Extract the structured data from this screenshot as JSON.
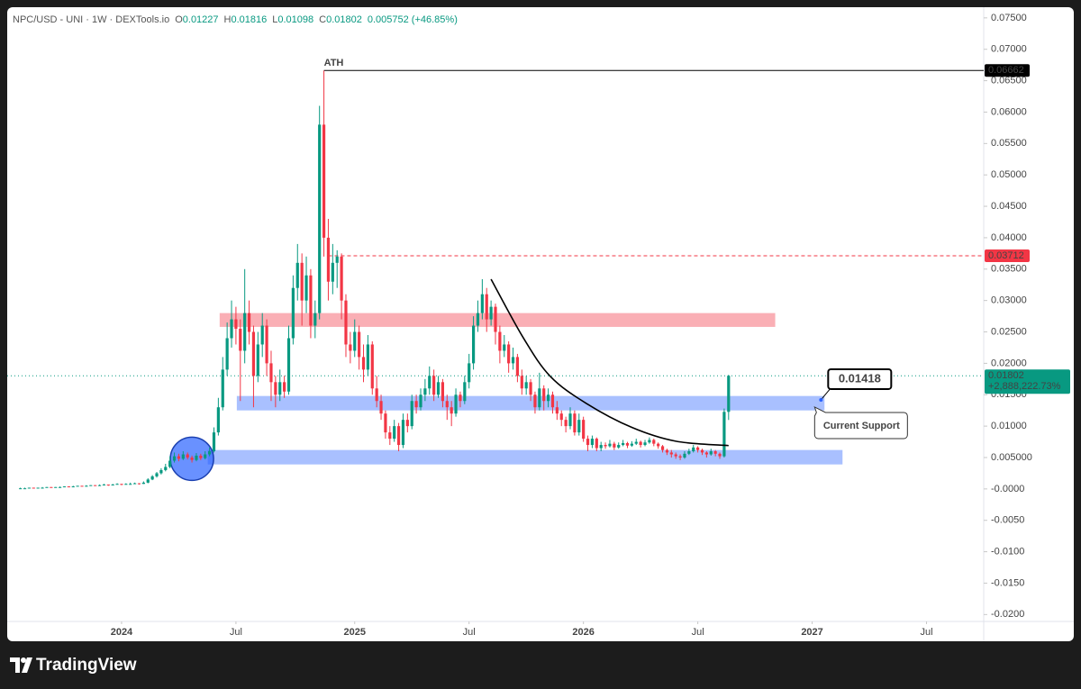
{
  "chart_data": {
    "type": "candlestick",
    "symbol": "NPC/USD - UNI · 1W · DEXTools.io",
    "ohlc_labels": [
      "O",
      "H",
      "L",
      "C"
    ],
    "change_label": "0.005752 (+46.85%)",
    "last_change_label": "+2,888,222.73%",
    "up_color": "#089981",
    "down_color": "#f23645",
    "grid": false,
    "xlim": [
      -3,
      219
    ],
    "ylim": [
      -0.0211,
      0.0767
    ],
    "xticks": [
      {
        "value": 23,
        "label": "2024"
      },
      {
        "value": 49,
        "label": "Jul"
      },
      {
        "value": 76,
        "label": "2025"
      },
      {
        "value": 102,
        "label": "Jul"
      },
      {
        "value": 128,
        "label": "2026"
      },
      {
        "value": 154,
        "label": "Jul"
      },
      {
        "value": 180,
        "label": "2027"
      },
      {
        "value": 206,
        "label": "Jul"
      }
    ],
    "yticks": [
      {
        "value": 0.075,
        "label": "0.07500"
      },
      {
        "value": 0.07,
        "label": "0.07000"
      },
      {
        "value": 0.065,
        "label": "0.06500"
      },
      {
        "value": 0.06,
        "label": "0.06000"
      },
      {
        "value": 0.055,
        "label": "0.05500"
      },
      {
        "value": 0.05,
        "label": "0.05000"
      },
      {
        "value": 0.045,
        "label": "0.04500"
      },
      {
        "value": 0.04,
        "label": "0.04000"
      },
      {
        "value": 0.035,
        "label": "0.03500"
      },
      {
        "value": 0.03,
        "label": "0.03000"
      },
      {
        "value": 0.025,
        "label": "0.02500"
      },
      {
        "value": 0.02,
        "label": "0.02000"
      },
      {
        "value": 0.015,
        "label": "0.01500"
      },
      {
        "value": 0.01,
        "label": "0.01000"
      },
      {
        "value": 0.005,
        "label": "0.005000"
      },
      {
        "value": 0,
        "label": "-0.0000"
      },
      {
        "value": -0.005,
        "label": "-0.0050"
      },
      {
        "value": -0.01,
        "label": "-0.0100"
      },
      {
        "value": -0.015,
        "label": "-0.0150"
      },
      {
        "value": -0.02,
        "label": "-0.0200"
      }
    ],
    "x": [
      0,
      1,
      2,
      3,
      4,
      5,
      6,
      7,
      8,
      9,
      10,
      11,
      12,
      13,
      14,
      15,
      16,
      17,
      18,
      19,
      20,
      21,
      22,
      23,
      24,
      25,
      26,
      27,
      28,
      29,
      30,
      31,
      32,
      33,
      34,
      35,
      36,
      37,
      38,
      39,
      40,
      41,
      42,
      43,
      44,
      45,
      46,
      47,
      48,
      49,
      50,
      51,
      52,
      53,
      54,
      55,
      56,
      57,
      58,
      59,
      60,
      61,
      62,
      63,
      64,
      65,
      66,
      67,
      68,
      69,
      70,
      71,
      72,
      73,
      74,
      75,
      76,
      77,
      78,
      79,
      80,
      81,
      82,
      83,
      84,
      85,
      86,
      87,
      88,
      89,
      90,
      91,
      92,
      93,
      94,
      95,
      96,
      97,
      98,
      99,
      100,
      101,
      102,
      103,
      104,
      105,
      106,
      107,
      108,
      109,
      110,
      111,
      112,
      113,
      114,
      115,
      116,
      117,
      118,
      119,
      120,
      121,
      122,
      123,
      124,
      125,
      126,
      127,
      128,
      129,
      130,
      131,
      132,
      133,
      134,
      135,
      136,
      137,
      138,
      139,
      140,
      141,
      142,
      143,
      144,
      145,
      146,
      147,
      148,
      149,
      150,
      151,
      152,
      153,
      154,
      155,
      156,
      157,
      158,
      159,
      160,
      161
    ],
    "candles": [
      [
        0.0001,
        0.0002,
        0.0,
        0.0001
      ],
      [
        0.0001,
        0.0002,
        0.0001,
        0.0001
      ],
      [
        0.0001,
        0.0002,
        0.0001,
        0.0002
      ],
      [
        0.0002,
        0.0002,
        0.0001,
        0.0001
      ],
      [
        0.0001,
        0.0002,
        0.0001,
        0.0002
      ],
      [
        0.0002,
        0.0003,
        0.0002,
        0.0002
      ],
      [
        0.0002,
        0.0003,
        0.0002,
        0.0003
      ],
      [
        0.0003,
        0.0003,
        0.0002,
        0.0002
      ],
      [
        0.0002,
        0.0003,
        0.0002,
        0.0003
      ],
      [
        0.0003,
        0.0004,
        0.0003,
        0.0003
      ],
      [
        0.0003,
        0.0004,
        0.0003,
        0.0004
      ],
      [
        0.0004,
        0.0004,
        0.0003,
        0.0003
      ],
      [
        0.0003,
        0.0005,
        0.0003,
        0.0004
      ],
      [
        0.0004,
        0.0005,
        0.0004,
        0.0005
      ],
      [
        0.0005,
        0.0005,
        0.0004,
        0.0004
      ],
      [
        0.0004,
        0.0006,
        0.0004,
        0.0005
      ],
      [
        0.0005,
        0.0006,
        0.0005,
        0.0006
      ],
      [
        0.0006,
        0.0006,
        0.0005,
        0.0005
      ],
      [
        0.0005,
        0.0007,
        0.0005,
        0.0006
      ],
      [
        0.0006,
        0.0008,
        0.0006,
        0.0007
      ],
      [
        0.0007,
        0.0007,
        0.0005,
        0.0006
      ],
      [
        0.0006,
        0.0008,
        0.0006,
        0.0007
      ],
      [
        0.0007,
        0.0009,
        0.0007,
        0.0008
      ],
      [
        0.0008,
        0.0008,
        0.0006,
        0.0007
      ],
      [
        0.0007,
        0.0009,
        0.0007,
        0.0008
      ],
      [
        0.0008,
        0.001,
        0.0007,
        0.0008
      ],
      [
        0.0008,
        0.001,
        0.0008,
        0.0009
      ],
      [
        0.0009,
        0.0009,
        0.0007,
        0.0008
      ],
      [
        0.0008,
        0.0012,
        0.0008,
        0.001
      ],
      [
        0.001,
        0.0017,
        0.0009,
        0.0015
      ],
      [
        0.0015,
        0.0022,
        0.0014,
        0.002
      ],
      [
        0.002,
        0.0027,
        0.0018,
        0.0025
      ],
      [
        0.0025,
        0.0033,
        0.0023,
        0.003
      ],
      [
        0.003,
        0.004,
        0.0028,
        0.0035
      ],
      [
        0.0035,
        0.0052,
        0.0033,
        0.0045
      ],
      [
        0.0045,
        0.0058,
        0.0042,
        0.0052
      ],
      [
        0.0052,
        0.0056,
        0.0044,
        0.0048
      ],
      [
        0.0048,
        0.006,
        0.0046,
        0.0055
      ],
      [
        0.0055,
        0.0058,
        0.0047,
        0.005
      ],
      [
        0.005,
        0.0053,
        0.0042,
        0.0046
      ],
      [
        0.0046,
        0.0057,
        0.0044,
        0.0053
      ],
      [
        0.0053,
        0.0056,
        0.0046,
        0.0049
      ],
      [
        0.0049,
        0.006,
        0.0047,
        0.0055
      ],
      [
        0.0055,
        0.0066,
        0.0052,
        0.006
      ],
      [
        0.006,
        0.0098,
        0.0058,
        0.009
      ],
      [
        0.009,
        0.0145,
        0.0085,
        0.013
      ],
      [
        0.013,
        0.021,
        0.0125,
        0.019
      ],
      [
        0.019,
        0.0265,
        0.018,
        0.024
      ],
      [
        0.024,
        0.03,
        0.0225,
        0.027
      ],
      [
        0.027,
        0.029,
        0.023,
        0.0255
      ],
      [
        0.0255,
        0.027,
        0.014,
        0.022
      ],
      [
        0.022,
        0.035,
        0.02,
        0.028
      ],
      [
        0.028,
        0.03,
        0.023,
        0.025
      ],
      [
        0.025,
        0.026,
        0.013,
        0.018
      ],
      [
        0.018,
        0.025,
        0.017,
        0.023
      ],
      [
        0.023,
        0.028,
        0.021,
        0.026
      ],
      [
        0.026,
        0.027,
        0.018,
        0.02
      ],
      [
        0.02,
        0.022,
        0.014,
        0.017
      ],
      [
        0.017,
        0.018,
        0.013,
        0.015
      ],
      [
        0.015,
        0.019,
        0.014,
        0.017
      ],
      [
        0.017,
        0.018,
        0.0145,
        0.0155
      ],
      [
        0.0155,
        0.026,
        0.015,
        0.024
      ],
      [
        0.024,
        0.034,
        0.023,
        0.032
      ],
      [
        0.032,
        0.039,
        0.03,
        0.036
      ],
      [
        0.036,
        0.0375,
        0.026,
        0.03
      ],
      [
        0.03,
        0.037,
        0.028,
        0.034
      ],
      [
        0.034,
        0.035,
        0.024,
        0.026
      ],
      [
        0.026,
        0.03,
        0.024,
        0.028
      ],
      [
        0.028,
        0.061,
        0.027,
        0.058
      ],
      [
        0.058,
        0.0666,
        0.037,
        0.04
      ],
      [
        0.04,
        0.043,
        0.03,
        0.033
      ],
      [
        0.033,
        0.039,
        0.031,
        0.036
      ],
      [
        0.036,
        0.038,
        0.032,
        0.037
      ],
      [
        0.037,
        0.0375,
        0.027,
        0.03
      ],
      [
        0.03,
        0.031,
        0.021,
        0.023
      ],
      [
        0.023,
        0.025,
        0.02,
        0.022
      ],
      [
        0.022,
        0.027,
        0.021,
        0.025
      ],
      [
        0.025,
        0.026,
        0.019,
        0.021
      ],
      [
        0.021,
        0.023,
        0.017,
        0.019
      ],
      [
        0.019,
        0.0245,
        0.018,
        0.023
      ],
      [
        0.023,
        0.0235,
        0.015,
        0.016
      ],
      [
        0.016,
        0.018,
        0.013,
        0.014
      ],
      [
        0.014,
        0.015,
        0.011,
        0.012
      ],
      [
        0.012,
        0.0125,
        0.008,
        0.009
      ],
      [
        0.009,
        0.01,
        0.007,
        0.008
      ],
      [
        0.008,
        0.011,
        0.0075,
        0.01
      ],
      [
        0.01,
        0.0105,
        0.006,
        0.007
      ],
      [
        0.007,
        0.012,
        0.0065,
        0.011
      ],
      [
        0.011,
        0.012,
        0.009,
        0.01
      ],
      [
        0.01,
        0.015,
        0.0095,
        0.014
      ],
      [
        0.014,
        0.015,
        0.012,
        0.013
      ],
      [
        0.013,
        0.016,
        0.0125,
        0.015
      ],
      [
        0.015,
        0.0175,
        0.014,
        0.016
      ],
      [
        0.016,
        0.0195,
        0.015,
        0.018
      ],
      [
        0.018,
        0.019,
        0.014,
        0.015
      ],
      [
        0.015,
        0.018,
        0.0145,
        0.017
      ],
      [
        0.017,
        0.0175,
        0.013,
        0.014
      ],
      [
        0.014,
        0.015,
        0.011,
        0.013
      ],
      [
        0.013,
        0.014,
        0.01,
        0.012
      ],
      [
        0.012,
        0.016,
        0.0115,
        0.015
      ],
      [
        0.015,
        0.0155,
        0.013,
        0.014
      ],
      [
        0.014,
        0.018,
        0.0135,
        0.017
      ],
      [
        0.017,
        0.0215,
        0.016,
        0.02
      ],
      [
        0.02,
        0.0275,
        0.019,
        0.026
      ],
      [
        0.026,
        0.03,
        0.025,
        0.028
      ],
      [
        0.028,
        0.0334,
        0.027,
        0.031
      ],
      [
        0.031,
        0.032,
        0.025,
        0.027
      ],
      [
        0.027,
        0.03,
        0.026,
        0.029
      ],
      [
        0.029,
        0.0295,
        0.023,
        0.025
      ],
      [
        0.025,
        0.026,
        0.02,
        0.022
      ],
      [
        0.022,
        0.0245,
        0.021,
        0.023
      ],
      [
        0.023,
        0.0235,
        0.0185,
        0.02
      ],
      [
        0.02,
        0.0225,
        0.019,
        0.021
      ],
      [
        0.021,
        0.0215,
        0.017,
        0.018
      ],
      [
        0.018,
        0.019,
        0.015,
        0.016
      ],
      [
        0.016,
        0.018,
        0.015,
        0.017
      ],
      [
        0.017,
        0.0175,
        0.014,
        0.015
      ],
      [
        0.015,
        0.0155,
        0.012,
        0.013
      ],
      [
        0.013,
        0.0185,
        0.0125,
        0.016
      ],
      [
        0.016,
        0.0165,
        0.0125,
        0.014
      ],
      [
        0.014,
        0.016,
        0.013,
        0.015
      ],
      [
        0.015,
        0.0155,
        0.012,
        0.013
      ],
      [
        0.013,
        0.014,
        0.011,
        0.012
      ],
      [
        0.012,
        0.0125,
        0.01,
        0.011
      ],
      [
        0.011,
        0.0115,
        0.009,
        0.01
      ],
      [
        0.01,
        0.013,
        0.0095,
        0.012
      ],
      [
        0.012,
        0.0125,
        0.0085,
        0.009
      ],
      [
        0.009,
        0.012,
        0.0085,
        0.011
      ],
      [
        0.011,
        0.0115,
        0.0075,
        0.008
      ],
      [
        0.008,
        0.0085,
        0.006,
        0.007
      ],
      [
        0.007,
        0.0085,
        0.0065,
        0.008
      ],
      [
        0.008,
        0.0082,
        0.006,
        0.0065
      ],
      [
        0.0065,
        0.0075,
        0.006,
        0.007
      ],
      [
        0.007,
        0.0074,
        0.0064,
        0.0068
      ],
      [
        0.0068,
        0.0078,
        0.0066,
        0.0072
      ],
      [
        0.0072,
        0.0075,
        0.0062,
        0.0066
      ],
      [
        0.0066,
        0.0074,
        0.0064,
        0.007
      ],
      [
        0.007,
        0.0078,
        0.0068,
        0.0073
      ],
      [
        0.0073,
        0.0075,
        0.0065,
        0.0069
      ],
      [
        0.0069,
        0.0076,
        0.0067,
        0.0072
      ],
      [
        0.0072,
        0.008,
        0.007,
        0.0075
      ],
      [
        0.0075,
        0.0077,
        0.0066,
        0.007
      ],
      [
        0.007,
        0.0078,
        0.0068,
        0.0074
      ],
      [
        0.0074,
        0.0082,
        0.0072,
        0.0078
      ],
      [
        0.0078,
        0.008,
        0.0068,
        0.0072
      ],
      [
        0.0072,
        0.0074,
        0.0064,
        0.0068
      ],
      [
        0.0068,
        0.007,
        0.0058,
        0.0062
      ],
      [
        0.0062,
        0.0064,
        0.0054,
        0.0058
      ],
      [
        0.0058,
        0.0062,
        0.005,
        0.0055
      ],
      [
        0.0055,
        0.0058,
        0.0048,
        0.0052
      ],
      [
        0.0052,
        0.0055,
        0.0046,
        0.005
      ],
      [
        0.005,
        0.006,
        0.0048,
        0.0056
      ],
      [
        0.0056,
        0.0064,
        0.0054,
        0.006
      ],
      [
        0.006,
        0.007,
        0.0058,
        0.0066
      ],
      [
        0.0066,
        0.0068,
        0.0058,
        0.0062
      ],
      [
        0.0062,
        0.0064,
        0.0054,
        0.0058
      ],
      [
        0.0058,
        0.006,
        0.005,
        0.0055
      ],
      [
        0.0055,
        0.0064,
        0.0053,
        0.006
      ],
      [
        0.006,
        0.0062,
        0.0052,
        0.0056
      ],
      [
        0.0056,
        0.0058,
        0.0048,
        0.0052
      ],
      [
        0.0052,
        0.0128,
        0.005,
        0.01227
      ],
      [
        0.01227,
        0.01816,
        0.01098,
        0.01802
      ]
    ],
    "ath": {
      "label": "ATH",
      "value": 0.06662,
      "from": 69,
      "color": "#000000"
    },
    "resistance": {
      "value": 0.03712,
      "from": 70,
      "color": "#f23645"
    },
    "zones": [
      {
        "low": 0.0258,
        "high": 0.028,
        "from": 45.3,
        "to": 171.6,
        "color": "rgba(242,54,69,0.4)"
      },
      {
        "low": 0.0125,
        "high": 0.0148,
        "from": 49.2,
        "to": 182.8,
        "color": "rgba(41,98,255,0.4)"
      },
      {
        "low": 0.0039,
        "high": 0.0062,
        "from": 42.6,
        "to": 186.9,
        "color": "rgba(41,98,255,0.4)"
      }
    ],
    "highlight": {
      "x": 39,
      "y": 0.0048,
      "color": "rgba(41,98,255,0.7)"
    },
    "curve": {
      "x": [
        107,
        114.3,
        120.5,
        128.7,
        139,
        149,
        161
      ],
      "y": [
        0.0334,
        0.0241,
        0.0179,
        0.0136,
        0.0098,
        0.0076,
        0.0069
      ]
    },
    "callout": {
      "x": 182,
      "value": 0.01418
    },
    "note": "Current Support"
  },
  "footer": {
    "brand": "TradingView"
  }
}
